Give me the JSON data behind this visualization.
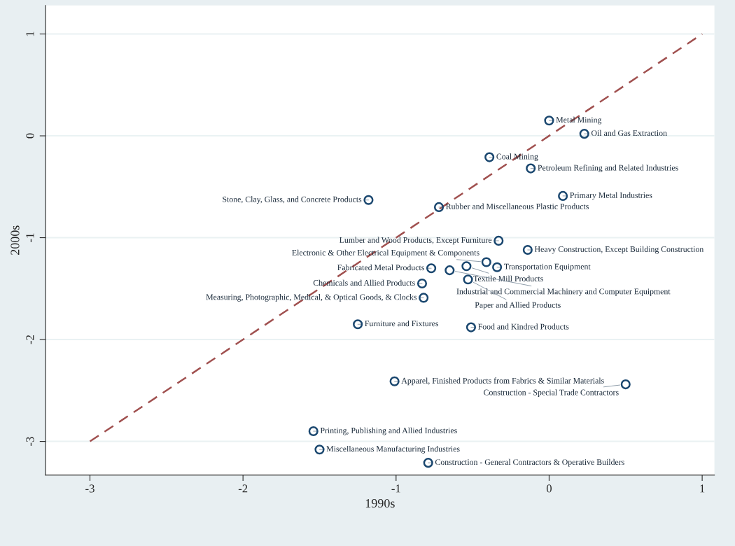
{
  "chart_data": {
    "type": "scatter",
    "xlabel": "1990s",
    "ylabel": "2000s",
    "xlim": [
      -3.29,
      1.08
    ],
    "ylim": [
      -3.33,
      1.28
    ],
    "xticks": [
      -3,
      -2,
      -1,
      0,
      1
    ],
    "yticks": [
      -3,
      -2,
      -1,
      0,
      1
    ],
    "grid": "y",
    "legend": false,
    "series": [
      {
        "type": "line",
        "color": "#a0504f",
        "line_style": "dashed",
        "x": [
          -3,
          1
        ],
        "values": [
          -3,
          1
        ]
      },
      {
        "type": "scatter",
        "color": "#1a476f",
        "marker": "circle",
        "x": [
          0.0,
          0.23,
          -0.39,
          -0.12,
          0.09,
          -1.18,
          -0.72,
          -0.33,
          -0.14,
          -0.41,
          -0.77,
          -0.54,
          -0.34,
          -0.65,
          -0.53,
          -0.83,
          -0.82,
          -1.25,
          -0.51,
          -1.01,
          0.5,
          -1.54,
          -1.5,
          -0.79
        ],
        "values": [
          0.15,
          0.02,
          -0.21,
          -0.32,
          -0.59,
          -0.63,
          -0.7,
          -1.03,
          -1.12,
          -1.24,
          -1.3,
          -1.28,
          -1.29,
          -1.32,
          -1.41,
          -1.45,
          -1.59,
          -1.85,
          -1.88,
          -2.41,
          -2.44,
          -2.9,
          -3.08,
          -3.21
        ],
        "value_labels": [
          "Metal Mining",
          "Oil and Gas Extraction",
          "Coal Mining",
          "Petroleum Refining and Related Industries",
          "Primary Metal Industries",
          "Stone, Clay, Glass, and Concrete Products",
          "Rubber and Miscellaneous Plastic Products",
          "Lumber and Wood Products, Except Furniture",
          "Heavy Construction, Except Building Construction",
          "Electronic & Other Electrical Equipment & Components",
          "Fabricated Metal Products",
          "Textile Mill Products",
          "Transportation Equipment",
          "Industrial and Commercial Machinery and Computer Equipment",
          "Paper and Allied Products",
          "Chemicals and Allied Products",
          "Measuring, Photographic, Medical, & Optical Goods, & Clocks",
          "Furniture and Fixtures",
          "Food and Kindred Products",
          "Apparel, Finished Products from Fabrics & Similar Materials",
          "Construction - Special Trade Contractors",
          "Printing, Publishing and Allied Industries",
          "Miscellaneous Manufacturing Industries",
          "Construction - General Contractors & Operative Builders"
        ]
      }
    ]
  }
}
